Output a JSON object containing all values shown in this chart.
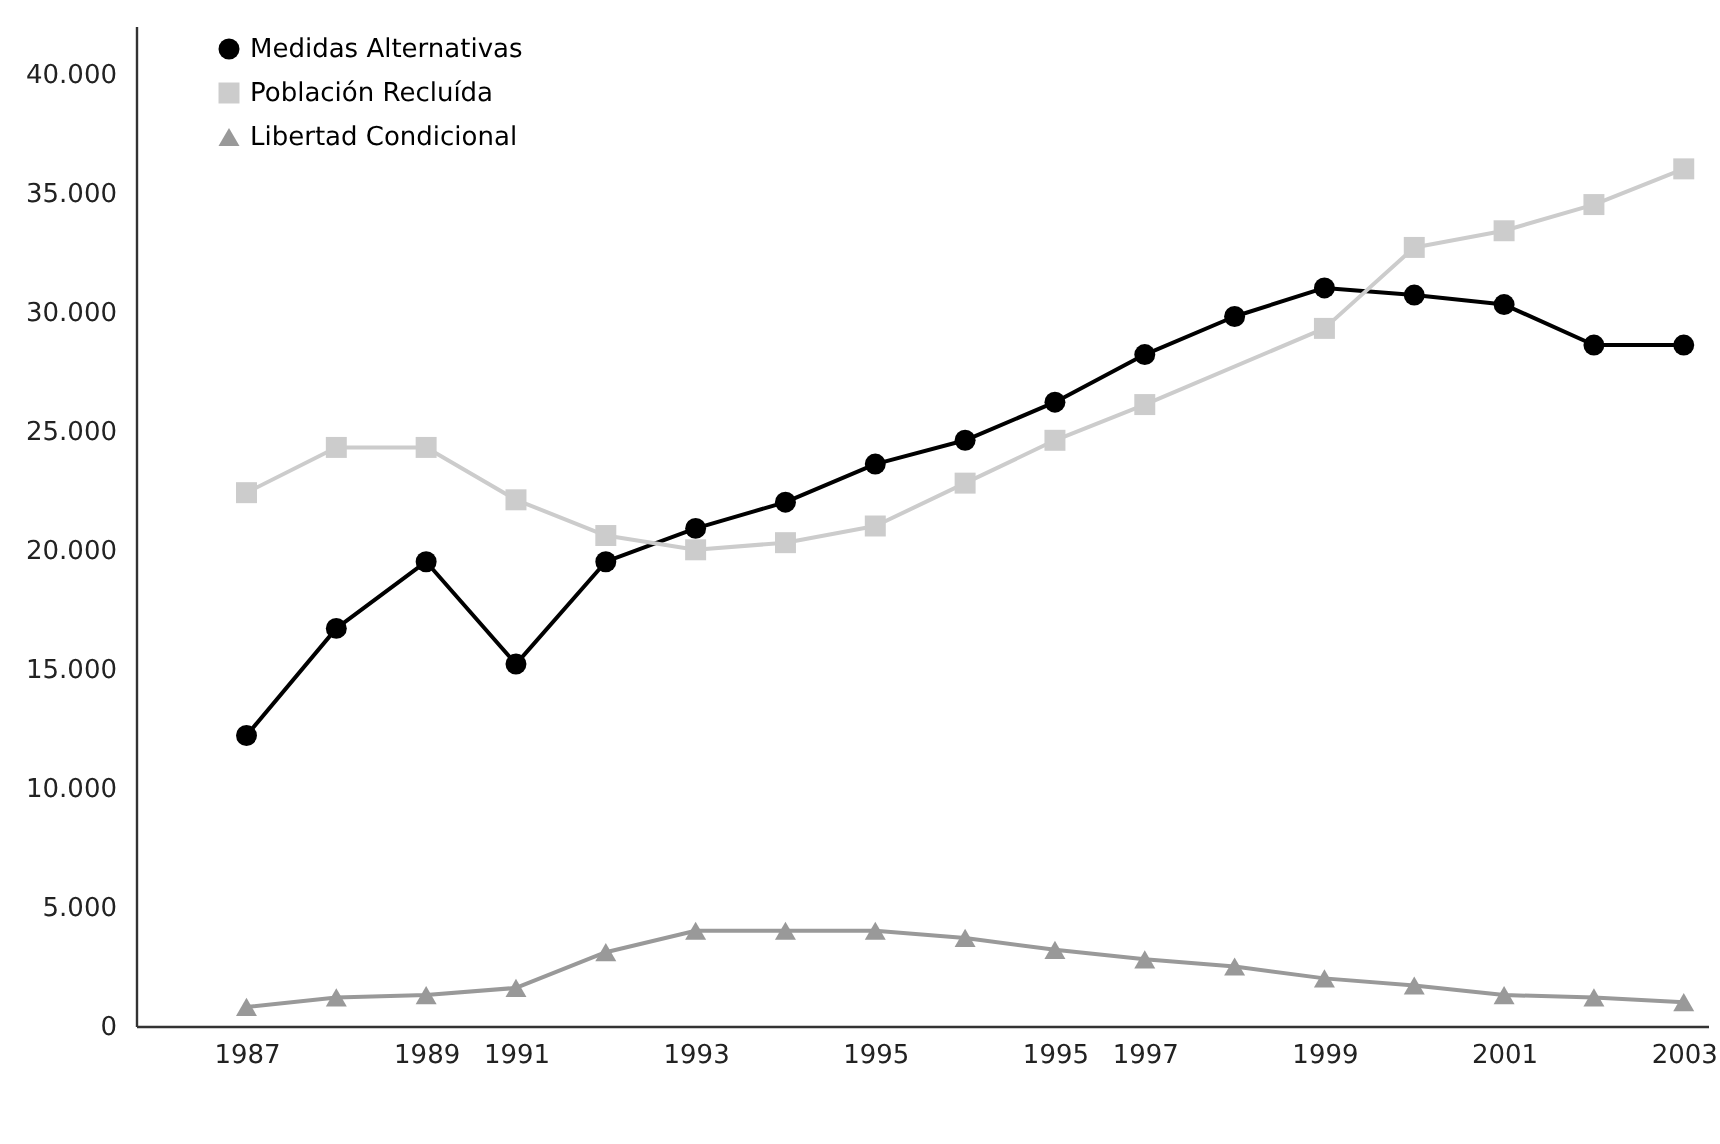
{
  "chart_data": {
    "type": "line",
    "categories": [
      "1987",
      null,
      "1989",
      "1991",
      null,
      "1993",
      null,
      "1995",
      null,
      "1995",
      "1997",
      null,
      "1999",
      null,
      "2001",
      null,
      "2003"
    ],
    "ylim": [
      0,
      42000
    ],
    "yticks": [
      {
        "value": 0,
        "label": "0"
      },
      {
        "value": 5000,
        "label": "5.000"
      },
      {
        "value": 10000,
        "label": "10.000"
      },
      {
        "value": 15000,
        "label": "15.000"
      },
      {
        "value": 20000,
        "label": "20.000"
      },
      {
        "value": 25000,
        "label": "25.000"
      },
      {
        "value": 30000,
        "label": "30.000"
      },
      {
        "value": 35000,
        "label": "35.000"
      },
      {
        "value": 40000,
        "label": "40.000"
      }
    ],
    "series": [
      {
        "name": "Medidas Alternativas",
        "color": "#000000",
        "marker": "circle",
        "values": [
          12200,
          16700,
          19500,
          15200,
          19500,
          20900,
          22000,
          23600,
          24600,
          26200,
          28200,
          29800,
          31000,
          30700,
          30300,
          28600,
          28600
        ]
      },
      {
        "name": "Población Recluída",
        "color": "#cccccc",
        "marker": "square",
        "values": [
          22400,
          24300,
          24300,
          22100,
          20600,
          20000,
          20300,
          21000,
          22800,
          24600,
          26100,
          null,
          29300,
          32700,
          33400,
          34500,
          36000
        ]
      },
      {
        "name": "Libertad Condicional",
        "color": "#999999",
        "marker": "triangle",
        "values": [
          800,
          1200,
          1300,
          1600,
          3100,
          4000,
          4000,
          4000,
          3700,
          3200,
          2800,
          2500,
          2000,
          1700,
          1300,
          1200,
          1000
        ]
      }
    ],
    "legend": "top left"
  }
}
